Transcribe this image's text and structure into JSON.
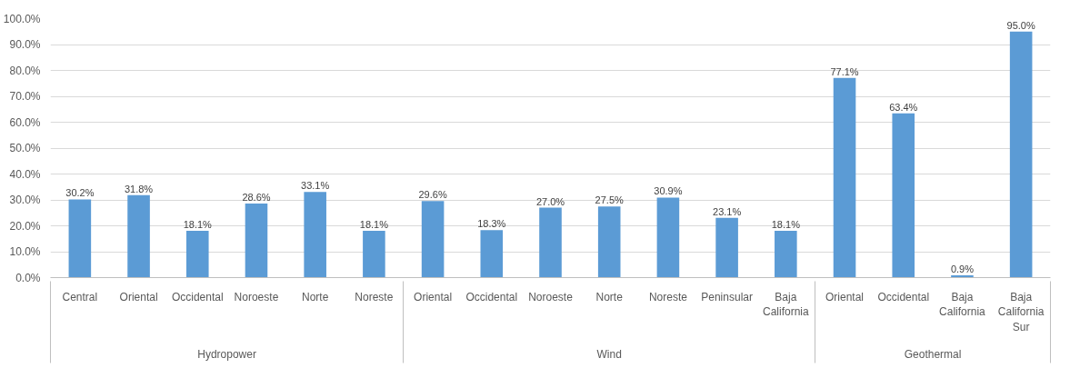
{
  "chart_data": {
    "type": "bar",
    "categories": [
      "Central",
      "Oriental",
      "Occidental",
      "Noroeste",
      "Norte",
      "Noreste",
      "Oriental",
      "Occidental",
      "Noroeste",
      "Norte",
      "Noreste",
      "Peninsular",
      "Baja California",
      "Oriental",
      "Occidental",
      "Baja California",
      "Baja California Sur"
    ],
    "annotations": [
      "Hydropower",
      "Wind",
      "Geothermal"
    ],
    "values": [
      30.2,
      31.8,
      18.1,
      28.6,
      33.1,
      18.1,
      29.6,
      18.3,
      27.0,
      27.5,
      30.9,
      23.1,
      18.1,
      77.1,
      63.4,
      0.9,
      95.0
    ],
    "color": "#5b9bd5",
    "ylim": [
      0,
      100
    ],
    "yticks": [
      {
        "value": 0,
        "label": "0.0%"
      },
      {
        "value": 10,
        "label": "10.0%"
      },
      {
        "value": 20,
        "label": "20.0%"
      },
      {
        "value": 30,
        "label": "30.0%"
      },
      {
        "value": 40,
        "label": "40.0%"
      },
      {
        "value": 50,
        "label": "50.0%"
      },
      {
        "value": 60,
        "label": "60.0%"
      },
      {
        "value": 70,
        "label": "70.0%"
      },
      {
        "value": 80,
        "label": "80.0%"
      },
      {
        "value": 90,
        "label": "90.0%"
      },
      {
        "value": 100,
        "label": "100.0%"
      }
    ],
    "grid": "y",
    "value_labels": [
      "30.2%",
      "31.8%",
      "18.1%",
      "28.6%",
      "33.1%",
      "18.1%",
      "29.6%",
      "18.3%",
      "27.0%",
      "27.5%",
      "30.9%",
      "23.1%",
      "18.1%",
      "77.1%",
      "63.4%",
      "0.9%",
      "95.0%"
    ]
  }
}
